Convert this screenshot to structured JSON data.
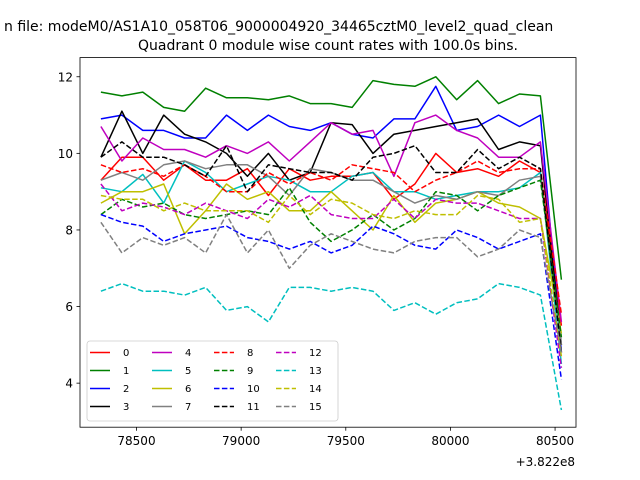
{
  "chart_data": {
    "type": "line",
    "suptitle": "n file: modeM0/AS1A10_058T06_9000004920_34465cztM0_level2_quad_clean",
    "title": "Quadrant 0 module wise count rates with 100.0s bins.",
    "xlabel": "",
    "ylabel": "",
    "x_offset_label": "+3.822e8",
    "xlim": [
      78230,
      80600
    ],
    "ylim": [
      2.85,
      12.5
    ],
    "x_ticks": [
      78500,
      79000,
      79500,
      80000,
      80500
    ],
    "y_ticks": [
      4,
      6,
      8,
      10,
      12
    ],
    "grid": false,
    "legend_position": "lower-left",
    "x": [
      78330,
      78430,
      78530,
      78630,
      78730,
      78830,
      78930,
      79030,
      79130,
      79230,
      79330,
      79430,
      79530,
      79630,
      79730,
      79830,
      79930,
      80030,
      80130,
      80230,
      80330,
      80430,
      80530
    ],
    "series": [
      {
        "name": "0",
        "color": "#ff0000",
        "dash": "solid",
        "values": [
          9.3,
          9.9,
          9.9,
          9.3,
          9.7,
          9.3,
          9.3,
          9.6,
          8.9,
          9.6,
          9.3,
          9.4,
          9.4,
          9.5,
          8.8,
          9.2,
          10.0,
          9.5,
          9.6,
          9.4,
          9.8,
          9.5,
          5.5
        ]
      },
      {
        "name": "1",
        "color": "#008000",
        "dash": "solid",
        "values": [
          11.6,
          11.5,
          11.6,
          11.2,
          11.1,
          11.7,
          11.45,
          11.45,
          11.4,
          11.5,
          11.3,
          11.3,
          11.2,
          11.9,
          11.8,
          11.75,
          12.0,
          11.4,
          11.9,
          11.3,
          11.55,
          11.5,
          6.7
        ]
      },
      {
        "name": "2",
        "color": "#0000ff",
        "dash": "solid",
        "values": [
          10.9,
          11.0,
          10.6,
          10.6,
          10.4,
          10.4,
          11.0,
          10.6,
          11.0,
          10.7,
          10.6,
          10.8,
          10.5,
          10.4,
          10.9,
          10.9,
          11.75,
          10.6,
          10.7,
          11.0,
          10.7,
          11.0,
          4.8
        ]
      },
      {
        "name": "3",
        "color": "#000000",
        "dash": "solid",
        "values": [
          9.9,
          11.1,
          10.0,
          11.0,
          10.5,
          10.3,
          10.0,
          9.4,
          10.0,
          9.3,
          9.5,
          10.8,
          10.75,
          10.0,
          10.5,
          10.6,
          10.7,
          10.8,
          10.9,
          10.1,
          10.3,
          10.2,
          5.0
        ]
      },
      {
        "name": "4",
        "color": "#bf00bf",
        "dash": "solid",
        "values": [
          10.7,
          9.8,
          10.4,
          10.1,
          10.1,
          9.9,
          10.2,
          10.0,
          10.3,
          9.8,
          10.3,
          10.8,
          10.5,
          10.6,
          9.4,
          10.8,
          11.0,
          10.6,
          10.4,
          9.9,
          9.9,
          10.3,
          5.6
        ]
      },
      {
        "name": "5",
        "color": "#00bfbf",
        "dash": "solid",
        "values": [
          9.1,
          9.0,
          9.45,
          8.7,
          9.8,
          9.5,
          9.0,
          9.2,
          9.4,
          9.3,
          9.0,
          9.0,
          9.4,
          9.5,
          9.0,
          9.0,
          8.8,
          8.9,
          9.0,
          9.0,
          9.1,
          9.5,
          4.5
        ]
      },
      {
        "name": "6",
        "color": "#bfbf00",
        "dash": "solid",
        "values": [
          8.7,
          9.0,
          9.0,
          9.2,
          7.9,
          8.5,
          9.2,
          8.8,
          9.0,
          8.5,
          8.5,
          9.0,
          8.5,
          8.0,
          8.9,
          8.2,
          8.7,
          8.8,
          9.0,
          8.7,
          8.6,
          8.3,
          5.3
        ]
      },
      {
        "name": "7",
        "color": "#808080",
        "dash": "solid",
        "values": [
          9.3,
          9.5,
          9.3,
          9.7,
          9.8,
          9.6,
          9.7,
          9.7,
          9.4,
          8.9,
          9.6,
          9.5,
          9.3,
          9.3,
          9.0,
          8.7,
          8.9,
          8.8,
          9.0,
          8.9,
          9.3,
          9.4,
          5.0
        ]
      },
      {
        "name": "8",
        "color": "#ff0000",
        "dash": "dashed",
        "values": [
          9.7,
          9.5,
          9.6,
          9.4,
          9.7,
          9.4,
          9.0,
          9.0,
          9.5,
          9.2,
          9.5,
          9.3,
          9.7,
          9.6,
          9.5,
          9.0,
          9.3,
          9.5,
          9.8,
          9.5,
          9.6,
          9.6,
          5.8
        ]
      },
      {
        "name": "9",
        "color": "#008000",
        "dash": "dashed",
        "values": [
          8.4,
          8.8,
          8.6,
          8.7,
          8.4,
          8.3,
          8.4,
          8.5,
          8.4,
          9.1,
          8.2,
          7.7,
          8.0,
          8.4,
          8.0,
          8.3,
          9.0,
          8.9,
          8.5,
          8.9,
          9.1,
          9.3,
          5.2
        ]
      },
      {
        "name": "10",
        "color": "#0000ff",
        "dash": "dashed",
        "values": [
          8.4,
          8.2,
          8.1,
          7.7,
          7.9,
          8.0,
          8.1,
          7.8,
          7.7,
          7.5,
          7.7,
          7.4,
          7.6,
          8.1,
          7.9,
          7.6,
          7.5,
          8.0,
          7.8,
          7.5,
          7.7,
          7.9,
          4.1
        ]
      },
      {
        "name": "11",
        "color": "#000000",
        "dash": "dashed",
        "values": [
          9.9,
          10.3,
          9.9,
          9.9,
          9.7,
          9.4,
          10.2,
          9.0,
          9.7,
          9.6,
          9.5,
          9.5,
          9.3,
          9.9,
          10.0,
          10.2,
          9.5,
          9.5,
          10.1,
          9.6,
          9.9,
          9.6,
          4.8
        ]
      },
      {
        "name": "12",
        "color": "#bf00bf",
        "dash": "dashed",
        "values": [
          9.2,
          8.5,
          8.7,
          8.6,
          8.4,
          8.7,
          8.5,
          8.3,
          8.8,
          8.6,
          8.9,
          8.4,
          8.3,
          8.3,
          8.8,
          8.3,
          8.8,
          8.7,
          8.7,
          8.5,
          8.3,
          8.3,
          4.4
        ]
      },
      {
        "name": "13",
        "color": "#00bfbf",
        "dash": "dashed",
        "values": [
          6.4,
          6.6,
          6.4,
          6.4,
          6.3,
          6.5,
          5.9,
          6.0,
          5.6,
          6.5,
          6.5,
          6.4,
          6.5,
          6.4,
          5.9,
          6.1,
          5.8,
          6.1,
          6.2,
          6.6,
          6.5,
          6.3,
          3.3
        ]
      },
      {
        "name": "14",
        "color": "#bfbf00",
        "dash": "dashed",
        "values": [
          8.9,
          8.8,
          8.8,
          8.5,
          8.7,
          8.5,
          8.5,
          8.5,
          8.2,
          8.9,
          8.4,
          8.8,
          8.7,
          8.4,
          8.3,
          8.5,
          8.4,
          8.4,
          8.9,
          8.8,
          8.2,
          8.3,
          4.7
        ]
      },
      {
        "name": "15",
        "color": "#808080",
        "dash": "dashed",
        "values": [
          8.2,
          7.4,
          7.8,
          7.6,
          7.8,
          7.4,
          8.4,
          7.4,
          8.0,
          7.0,
          7.6,
          7.9,
          7.7,
          7.5,
          7.4,
          7.7,
          7.8,
          7.8,
          7.3,
          7.5,
          8.0,
          7.8,
          4.8
        ]
      }
    ]
  }
}
